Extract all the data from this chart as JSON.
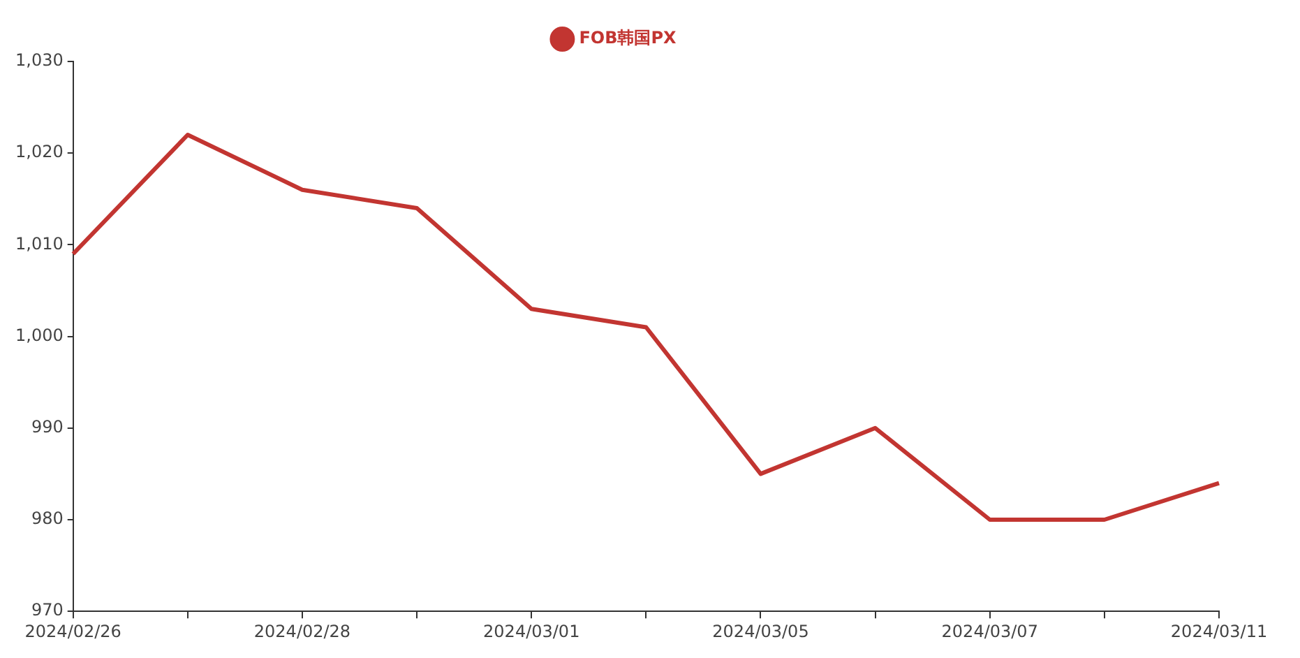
{
  "chart_data": {
    "type": "line",
    "categories": [
      "2024/02/26",
      null,
      "2024/02/28",
      null,
      "2024/03/01",
      null,
      "2024/03/05",
      null,
      "2024/03/07",
      null,
      "2024/03/11"
    ],
    "series": [
      {
        "name": "FOB韩国PX",
        "color": "#c23531",
        "values": [
          1009,
          1022,
          1016,
          1014,
          1003,
          1001,
          985,
          990,
          980,
          980,
          984
        ]
      }
    ],
    "ylim": [
      970,
      1030
    ],
    "yticks": [
      970,
      980,
      990,
      {
        "value": 1000,
        "label": "1,000"
      },
      {
        "value": 1010,
        "label": "1,010"
      },
      {
        "value": 1020,
        "label": "1,020"
      },
      {
        "value": 1030,
        "label": "1,030"
      }
    ],
    "grid": false,
    "legend": "top",
    "marker": "none"
  }
}
